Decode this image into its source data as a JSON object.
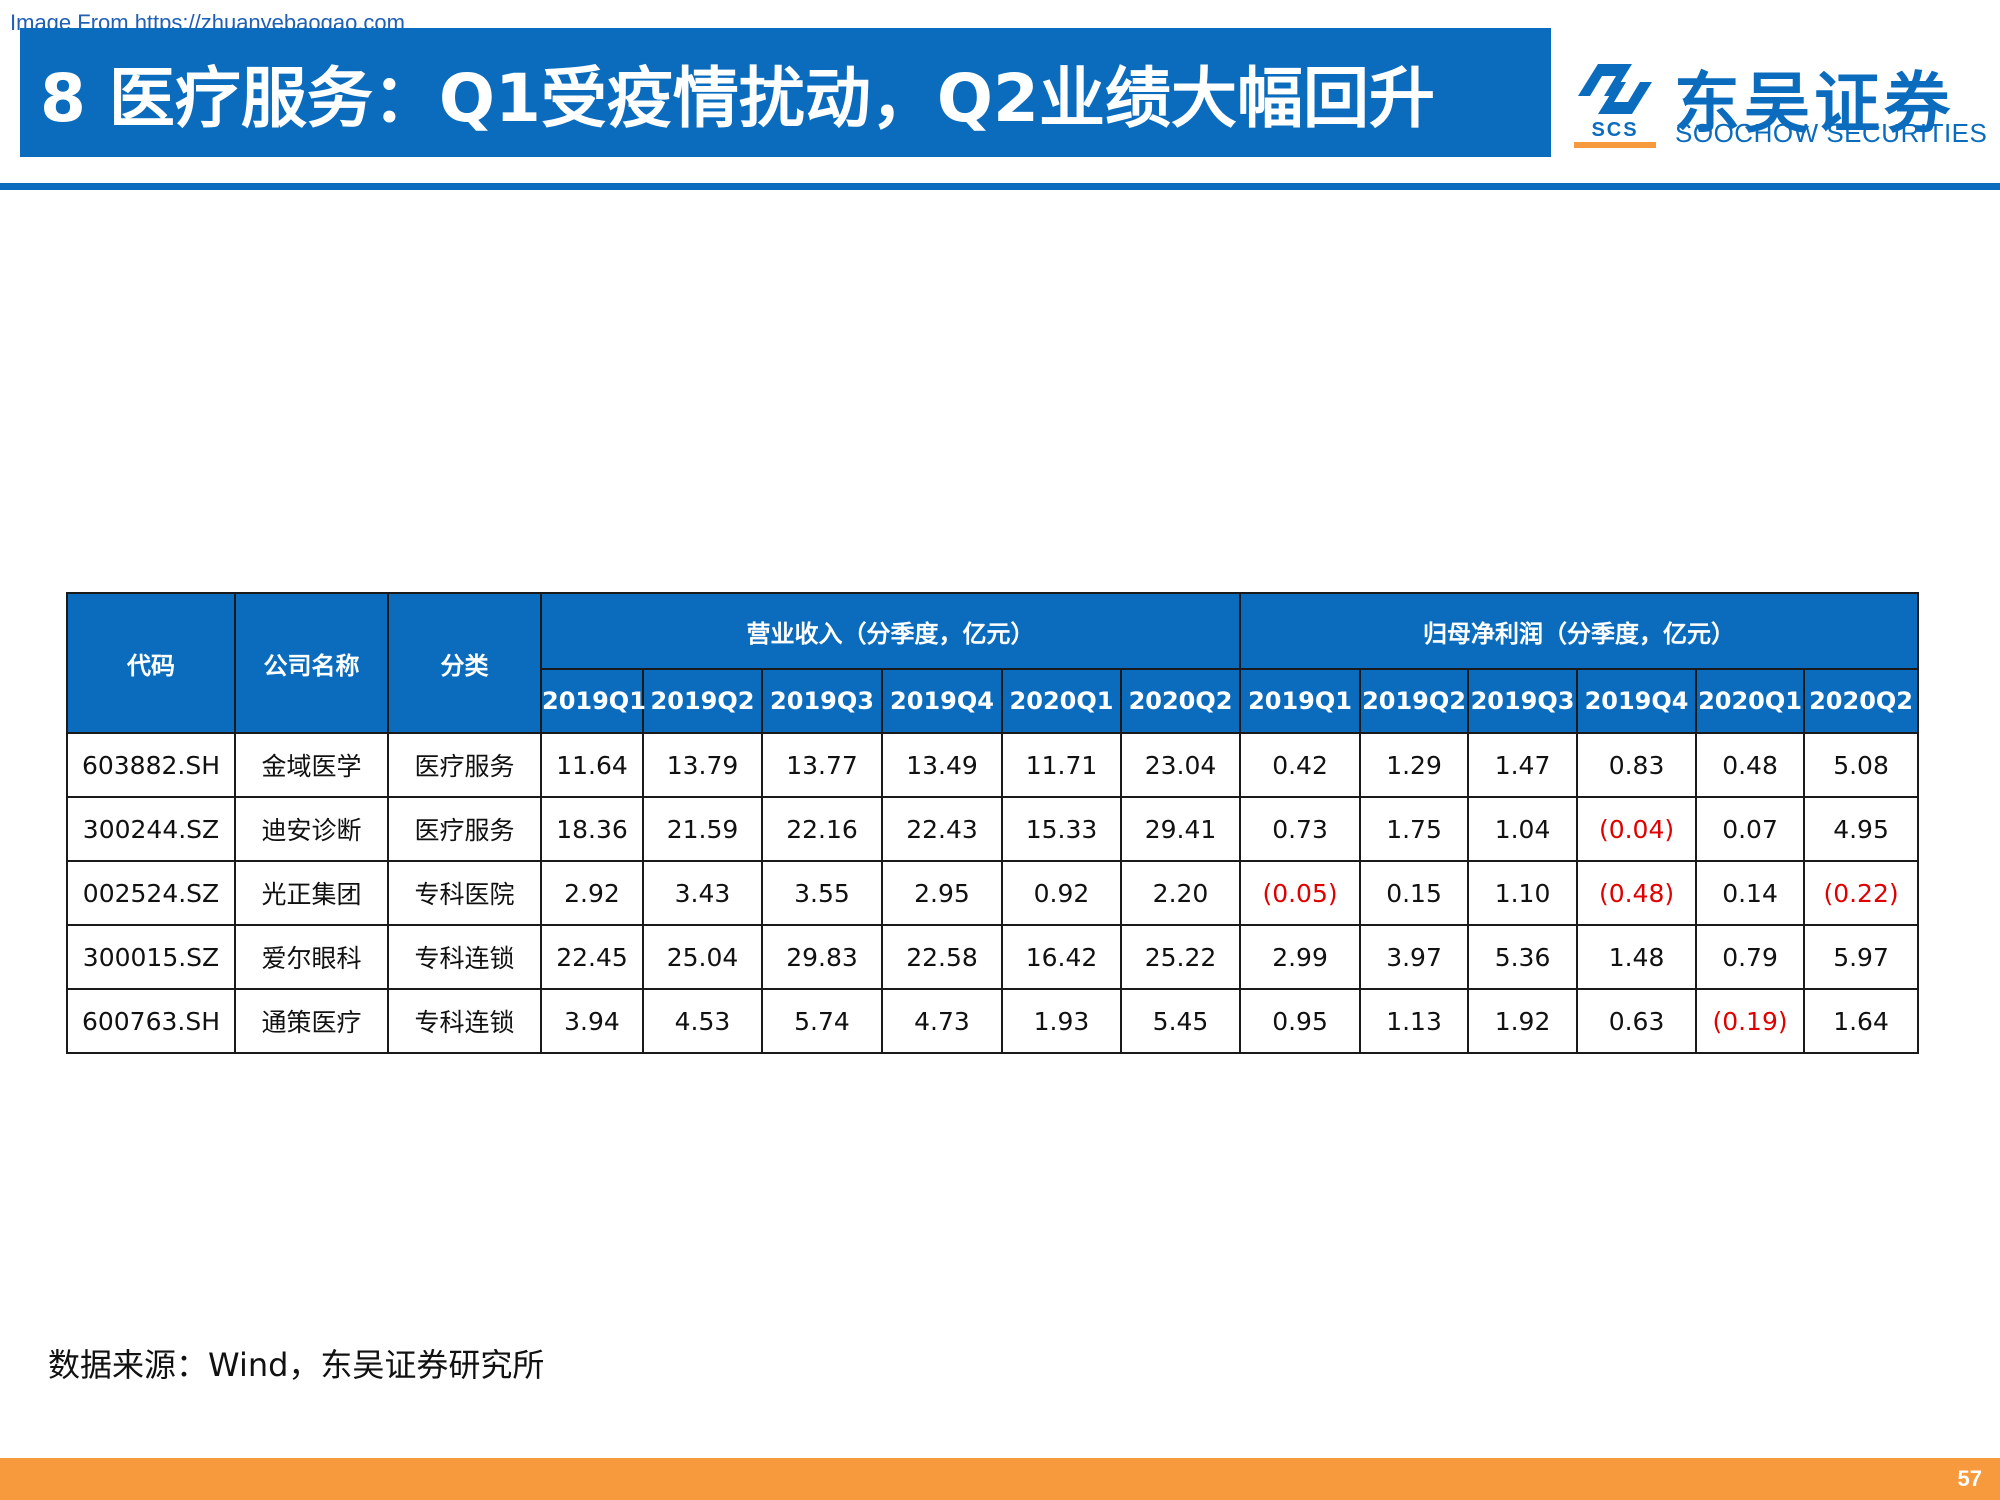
{
  "watermark": "Image From https://zhuanyebaogao.com",
  "slide": {
    "title": "8 医疗服务：Q1受疫情扰动，Q2业绩大幅回升",
    "page_number": "57"
  },
  "logo": {
    "cn": "东吴证券",
    "en": "SOOCHOW SECURITIES",
    "abbr": "SCS"
  },
  "table": {
    "headers": {
      "code": "代码",
      "company": "公司名称",
      "category": "分类",
      "revenue_group": "营业收入（分季度，亿元）",
      "profit_group": "归母净利润（分季度，亿元）",
      "quarters": [
        "2019Q1",
        "2019Q2",
        "2019Q3",
        "2019Q4",
        "2020Q1",
        "2020Q2"
      ]
    },
    "rows": [
      {
        "code": "603882.SH",
        "company": "金域医学",
        "category": "医疗服务",
        "revenue": [
          "11.64",
          "13.79",
          "13.77",
          "13.49",
          "11.71",
          "23.04"
        ],
        "profit": [
          "0.42",
          "1.29",
          "1.47",
          "0.83",
          "0.48",
          "5.08"
        ]
      },
      {
        "code": "300244.SZ",
        "company": "迪安诊断",
        "category": "医疗服务",
        "revenue": [
          "18.36",
          "21.59",
          "22.16",
          "22.43",
          "15.33",
          "29.41"
        ],
        "profit": [
          "0.73",
          "1.75",
          "1.04",
          "(0.04)",
          "0.07",
          "4.95"
        ]
      },
      {
        "code": "002524.SZ",
        "company": "光正集团",
        "category": "专科医院",
        "revenue": [
          "2.92",
          "3.43",
          "3.55",
          "2.95",
          "0.92",
          "2.20"
        ],
        "profit": [
          "(0.05)",
          "0.15",
          "1.10",
          "(0.48)",
          "0.14",
          "(0.22)"
        ]
      },
      {
        "code": "300015.SZ",
        "company": "爱尔眼科",
        "category": "专科连锁",
        "revenue": [
          "22.45",
          "25.04",
          "29.83",
          "22.58",
          "16.42",
          "25.22"
        ],
        "profit": [
          "2.99",
          "3.97",
          "5.36",
          "1.48",
          "0.79",
          "5.97"
        ]
      },
      {
        "code": "600763.SH",
        "company": "通策医疗",
        "category": "专科连锁",
        "revenue": [
          "3.94",
          "4.53",
          "5.74",
          "4.73",
          "1.93",
          "5.45"
        ],
        "profit": [
          "0.95",
          "1.13",
          "1.92",
          "0.63",
          "(0.19)",
          "1.64"
        ]
      }
    ]
  },
  "source": "数据来源：Wind，东吴证券研究所"
}
